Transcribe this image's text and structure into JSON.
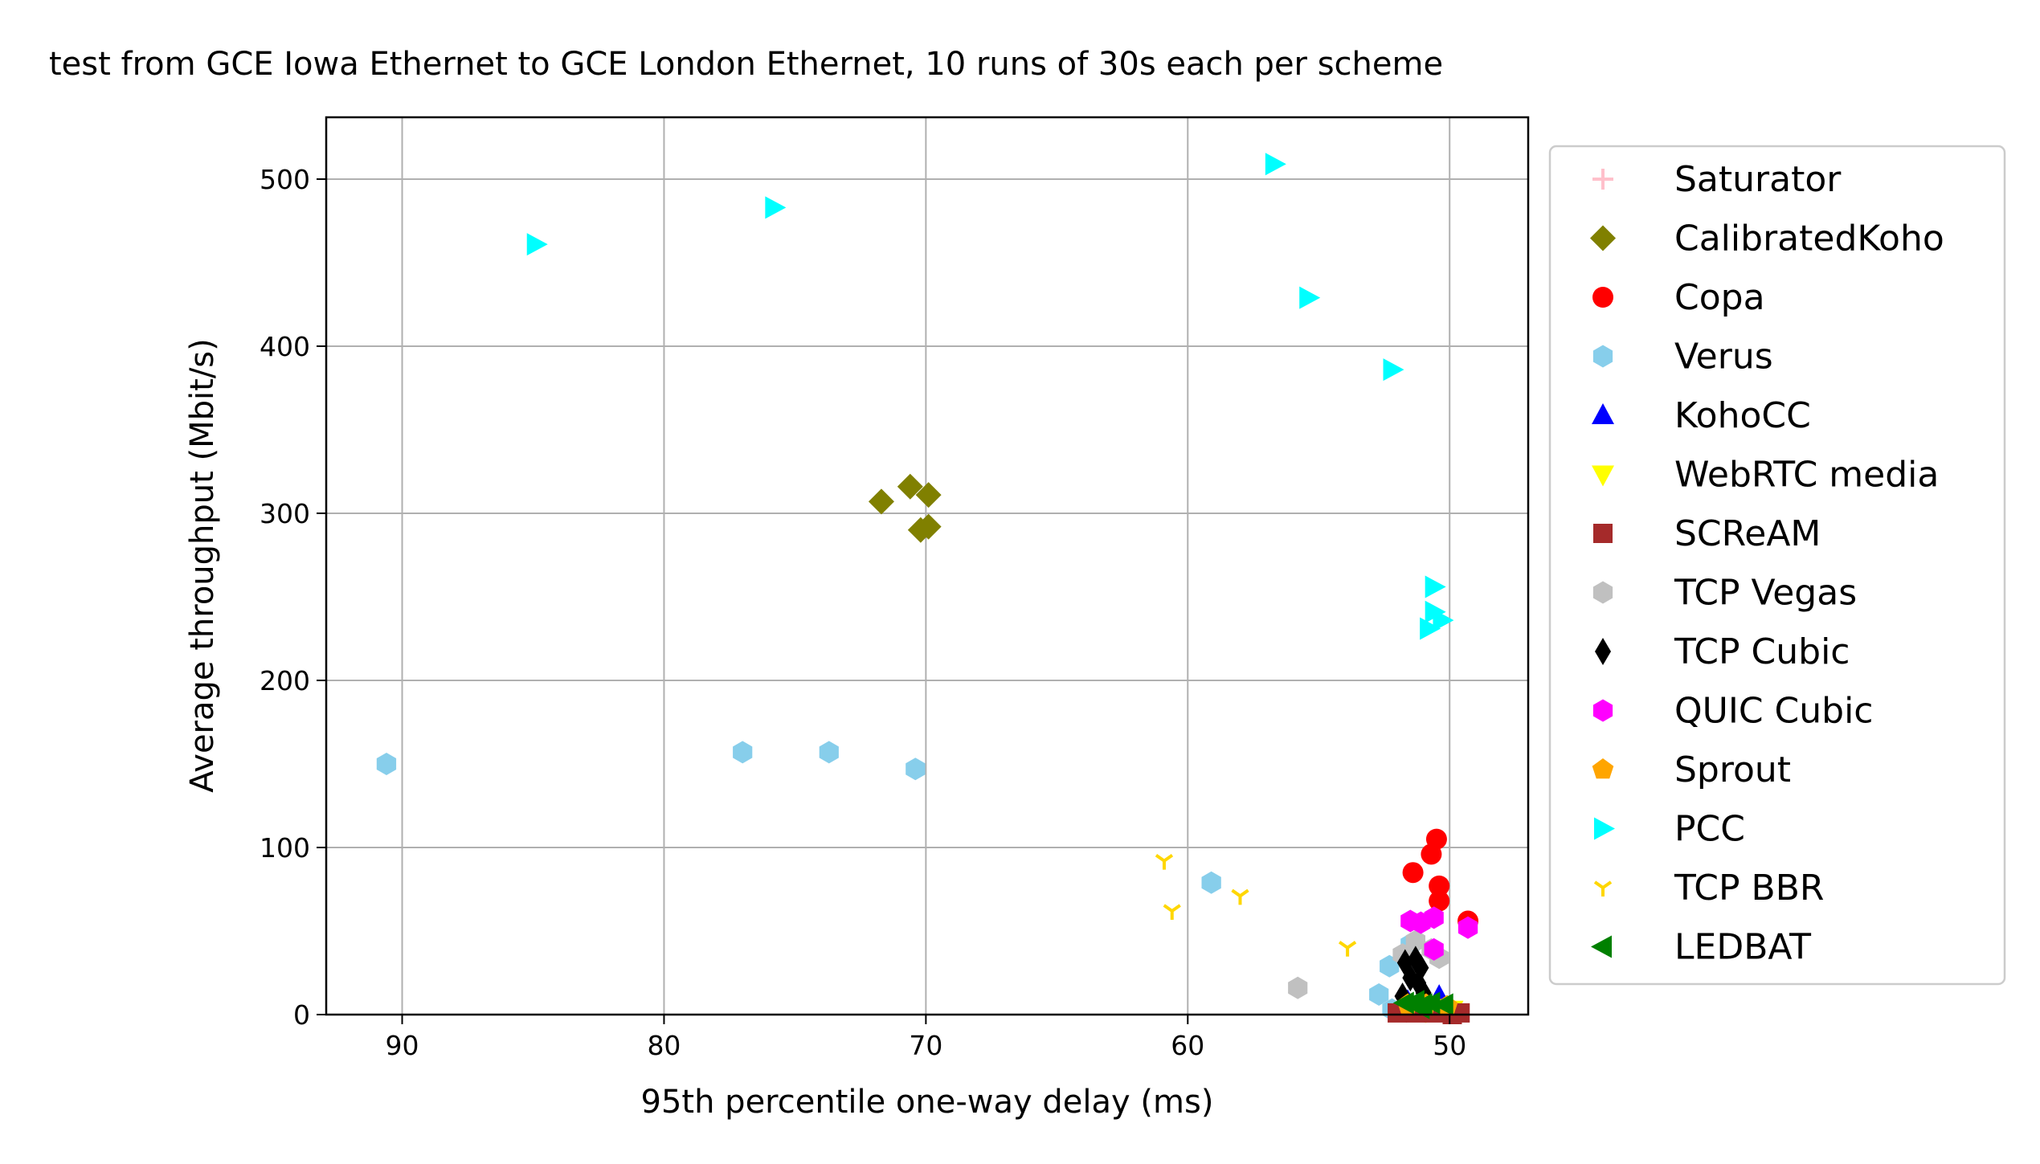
{
  "chart_data": {
    "type": "scatter",
    "title": "test from GCE Iowa Ethernet to GCE London Ethernet, 10 runs of 30s each per scheme",
    "xlabel": "95th percentile one-way delay (ms)",
    "ylabel": "Average throughput (Mbit/s)",
    "xlim": [
      92.9,
      47.0
    ],
    "ylim": [
      0,
      537
    ],
    "x_inverted": true,
    "grid": true,
    "legend_position": "outside-right",
    "xticks": [
      90,
      80,
      70,
      60,
      50
    ],
    "yticks": [
      0,
      100,
      200,
      300,
      400,
      500
    ],
    "series": [
      {
        "name": "Saturator",
        "marker": "plus",
        "color": "#ffc0cb",
        "points": [
          [
            51.6,
            2
          ],
          [
            51.0,
            3
          ]
        ]
      },
      {
        "name": "CalibratedKoho",
        "marker": "diamond",
        "color": "#808000",
        "points": [
          [
            71.7,
            307
          ],
          [
            70.6,
            316
          ],
          [
            69.9,
            311
          ],
          [
            70.2,
            290
          ],
          [
            69.9,
            292
          ]
        ]
      },
      {
        "name": "Copa",
        "marker": "circle",
        "color": "#ff0000",
        "points": [
          [
            50.5,
            105
          ],
          [
            50.7,
            96
          ],
          [
            50.4,
            77
          ],
          [
            50.4,
            68
          ],
          [
            51.4,
            85
          ],
          [
            49.3,
            56
          ]
        ]
      },
      {
        "name": "Verus",
        "marker": "hexagon",
        "color": "#87ceeb",
        "points": [
          [
            90.6,
            150
          ],
          [
            77.0,
            157
          ],
          [
            73.7,
            157
          ],
          [
            70.4,
            147
          ],
          [
            59.1,
            79
          ],
          [
            52.3,
            29
          ],
          [
            52.7,
            12
          ],
          [
            52.2,
            3
          ],
          [
            51.5,
            42
          ]
        ]
      },
      {
        "name": "KohoCC",
        "marker": "triangle-up",
        "color": "#0000ff",
        "points": [
          [
            50.9,
            9
          ],
          [
            50.4,
            11
          ],
          [
            51.6,
            8
          ],
          [
            50.7,
            5
          ]
        ]
      },
      {
        "name": "WebRTC media",
        "marker": "triangle-down",
        "color": "#ffff00",
        "points": [
          [
            51.5,
            3
          ],
          [
            50.9,
            2
          ],
          [
            50.6,
            4
          ],
          [
            49.9,
            3
          ]
        ]
      },
      {
        "name": "SCReAM",
        "marker": "square",
        "color": "#a52a2a",
        "points": [
          [
            52.0,
            1
          ],
          [
            51.3,
            1
          ],
          [
            50.6,
            1
          ],
          [
            49.9,
            0
          ],
          [
            49.6,
            1
          ]
        ]
      },
      {
        "name": "TCP Vegas",
        "marker": "hexagon",
        "color": "#c0c0c0",
        "points": [
          [
            55.8,
            16
          ],
          [
            51.8,
            36
          ],
          [
            51.3,
            44
          ],
          [
            50.7,
            39
          ],
          [
            50.4,
            34
          ]
        ]
      },
      {
        "name": "TCP Cubic",
        "marker": "thin-diamond",
        "color": "#000000",
        "points": [
          [
            51.7,
            31
          ],
          [
            51.3,
            33
          ],
          [
            51.1,
            28
          ],
          [
            51.5,
            22
          ],
          [
            51.2,
            19
          ],
          [
            51.8,
            11
          ],
          [
            51.0,
            13
          ]
        ]
      },
      {
        "name": "QUIC Cubic",
        "marker": "hexagon",
        "color": "#ff00ff",
        "points": [
          [
            51.5,
            56
          ],
          [
            51.1,
            55
          ],
          [
            50.6,
            58
          ],
          [
            50.6,
            39
          ],
          [
            49.3,
            52
          ]
        ]
      },
      {
        "name": "Sprout",
        "marker": "pentagon",
        "color": "#ffa500",
        "points": [
          [
            51.6,
            6
          ],
          [
            50.9,
            6
          ],
          [
            50.1,
            5
          ]
        ]
      },
      {
        "name": "PCC",
        "marker": "triangle-right",
        "color": "#00ffff",
        "points": [
          [
            84.9,
            461
          ],
          [
            75.8,
            483
          ],
          [
            56.7,
            509
          ],
          [
            55.4,
            429
          ],
          [
            52.2,
            386
          ],
          [
            50.6,
            256
          ],
          [
            50.6,
            241
          ],
          [
            50.3,
            236
          ],
          [
            50.8,
            231
          ]
        ]
      },
      {
        "name": "TCP BBR",
        "marker": "tri-down",
        "color": "#ffd700",
        "points": [
          [
            60.9,
            92
          ],
          [
            60.6,
            62
          ],
          [
            58.0,
            71
          ],
          [
            53.9,
            40
          ]
        ]
      },
      {
        "name": "LEDBAT",
        "marker": "triangle-left",
        "color": "#008000",
        "points": [
          [
            51.7,
            7
          ],
          [
            51.3,
            8
          ],
          [
            51.0,
            6
          ],
          [
            50.7,
            7
          ],
          [
            50.2,
            6
          ],
          [
            51.1,
            4
          ]
        ]
      }
    ]
  }
}
